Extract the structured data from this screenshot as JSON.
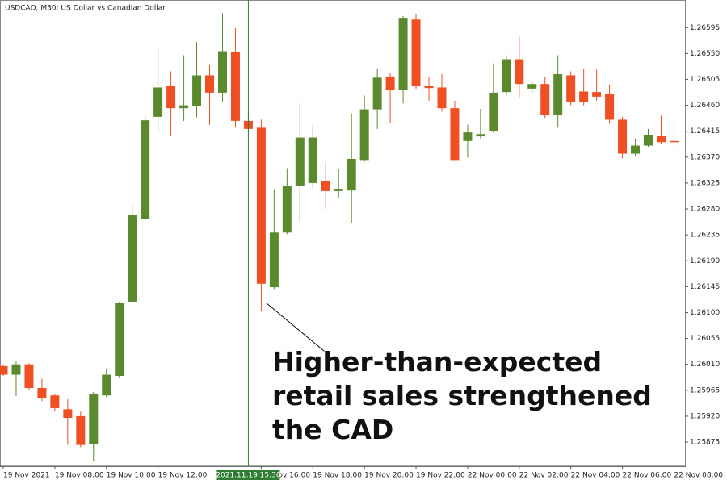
{
  "chart_data": {
    "type": "candlestick",
    "title": "USDCAD, M30:  US Dollar vs Canadian Dollar",
    "categories": [
      "19 Nov 2021",
      null,
      null,
      null,
      "19 Nov 08:00",
      null,
      null,
      null,
      "19 Nov 10:00",
      null,
      null,
      null,
      "19 Nov 12:00",
      null,
      null,
      null,
      null,
      null,
      null,
      null,
      "19 Nov 16:00",
      null,
      null,
      null,
      "19 Nov 18:00",
      null,
      null,
      null,
      "19 Nov 20:00",
      null,
      null,
      null,
      "19 Nov 22:00",
      null,
      null,
      null,
      "22 Nov 00:00",
      null,
      null,
      null,
      "22 Nov 02:00",
      null,
      null,
      null,
      "22 Nov 04:00",
      null,
      null,
      null,
      "22 Nov 06:00",
      null,
      null,
      null,
      "22 Nov 08:00"
    ],
    "open": [
      1.26007,
      1.25992,
      1.2601,
      1.25969,
      1.25956,
      1.25932,
      1.2592,
      1.25871,
      1.25956,
      1.2599,
      1.26119,
      1.26263,
      1.2644,
      1.26494,
      1.26455,
      1.26459,
      1.26512,
      1.26482,
      1.26553,
      1.26433,
      1.26421,
      1.26144,
      1.26239,
      1.2632,
      1.26325,
      1.26329,
      1.26311,
      1.26312,
      1.26365,
      1.26453,
      1.2651,
      1.26486,
      1.26609,
      1.26494,
      1.26491,
      1.26455,
      1.26398,
      1.26406,
      1.26416,
      1.26483,
      1.2654,
      1.26489,
      1.26497,
      1.26444,
      1.26512,
      1.26484,
      1.26483,
      1.2648,
      1.26435,
      1.26376,
      1.2639,
      1.26407,
      1.26398
    ],
    "high": [
      1.2601,
      1.26015,
      1.26012,
      1.25985,
      1.25959,
      1.25949,
      1.25928,
      1.25962,
      1.26003,
      1.26119,
      1.26287,
      1.26444,
      1.26559,
      1.26519,
      1.26547,
      1.2657,
      1.26531,
      1.2662,
      1.26594,
      1.2644,
      1.26435,
      1.26314,
      1.26351,
      1.26463,
      1.26426,
      1.26362,
      1.26349,
      1.26446,
      1.26477,
      1.26524,
      1.26517,
      1.26615,
      1.26619,
      1.2651,
      1.26514,
      1.26468,
      1.26426,
      1.26454,
      1.26533,
      1.26547,
      1.2658,
      1.26503,
      1.2651,
      1.26547,
      1.26519,
      1.26524,
      1.26522,
      1.26496,
      1.2644,
      1.26402,
      1.26419,
      1.26442,
      1.26435
    ],
    "low": [
      1.2599,
      1.25955,
      1.25965,
      1.25946,
      1.25928,
      1.2587,
      1.25866,
      1.25842,
      1.25953,
      1.25987,
      1.26117,
      1.2626,
      1.26413,
      1.26407,
      1.26433,
      1.26439,
      1.26426,
      1.26465,
      1.26421,
      1.26416,
      1.26103,
      1.26141,
      1.26236,
      1.26257,
      1.26317,
      1.2628,
      1.263,
      1.26256,
      1.26362,
      1.26419,
      1.2643,
      1.26463,
      1.26489,
      1.26468,
      1.26449,
      1.26365,
      1.26369,
      1.26402,
      1.26412,
      1.26477,
      1.26472,
      1.26482,
      1.26438,
      1.26421,
      1.2646,
      1.2646,
      1.26468,
      1.26428,
      1.26368,
      1.26372,
      1.26388,
      1.26393,
      1.26386
    ],
    "close": [
      1.25992,
      1.2601,
      1.25969,
      1.25952,
      1.25934,
      1.25917,
      1.2587,
      1.25959,
      1.25992,
      1.26117,
      1.26269,
      1.26434,
      1.26491,
      1.26455,
      1.2646,
      1.26512,
      1.26482,
      1.26554,
      1.26433,
      1.26419,
      1.2615,
      1.26239,
      1.2632,
      1.26404,
      1.26404,
      1.26311,
      1.26315,
      1.26367,
      1.26453,
      1.26508,
      1.26486,
      1.26612,
      1.26493,
      1.2649,
      1.26455,
      1.26365,
      1.26413,
      1.2641,
      1.26482,
      1.2654,
      1.26497,
      1.26497,
      1.26444,
      1.26514,
      1.26465,
      1.26465,
      1.26475,
      1.26435,
      1.26376,
      1.2639,
      1.26409,
      1.26396,
      1.26396
    ],
    "up_color": "#5b8a2e",
    "down_color": "#f04e23",
    "ylim": [
      1.25833,
      1.26643
    ],
    "yticks": [
      1.26595,
      {
        "value": 1.2655,
        "label": "1.26550"
      },
      1.26505,
      {
        "value": 1.2646,
        "label": "1.26460"
      },
      1.26415,
      {
        "value": 1.2637,
        "label": "1.26370"
      },
      1.26325,
      {
        "value": 1.2628,
        "label": "1.26280"
      },
      1.26235,
      {
        "value": 1.2619,
        "label": "1.26190"
      },
      1.26145,
      {
        "value": 1.261,
        "label": "1.26100"
      },
      1.26055,
      {
        "value": 1.2601,
        "label": "1.26010"
      },
      1.25965,
      {
        "value": 1.2592,
        "label": "1.25920"
      },
      1.25875
    ],
    "crosshair": {
      "index": 19,
      "label": "2021.11.19 15:30"
    },
    "annotation": {
      "index": 20,
      "lines": [
        "Higher-than-expected",
        "retail sales strengthened",
        "the CAD"
      ]
    }
  }
}
